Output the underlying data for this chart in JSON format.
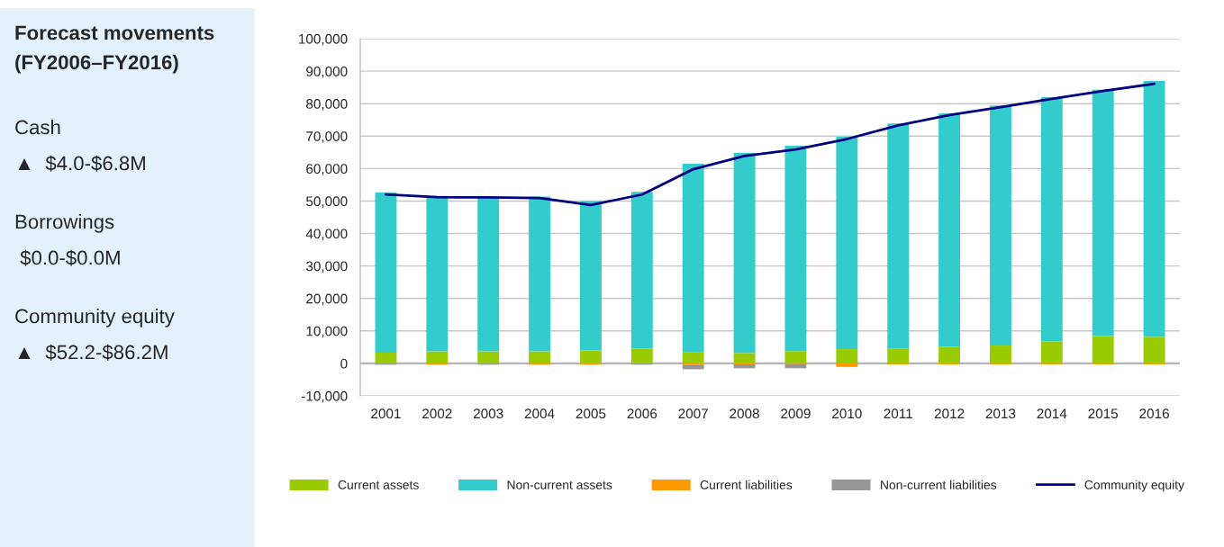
{
  "chart_data": {
    "type": "bar",
    "stacked": true,
    "title": "Forecast movements\n(FY2006–FY2016)",
    "annotations": [
      "Cash",
      "▲  $4.0-$6.8M",
      "Borrowings",
      " $0.0-$0.0M",
      "Community equity",
      "▲  $52.2-$86.2M"
    ],
    "categories": [
      "2001",
      "2002",
      "2003",
      "2004",
      "2005",
      "2006",
      "2007",
      "2008",
      "2009",
      "2010",
      "2011",
      "2012",
      "2013",
      "2014",
      "2015",
      "2016"
    ],
    "series": [
      {
        "name": "Current assets",
        "color": "#99cc00",
        "values": [
          3300,
          3700,
          3700,
          3700,
          4000,
          4600,
          3400,
          3200,
          3800,
          4400,
          4500,
          5100,
          5500,
          6800,
          8400,
          8200
        ]
      },
      {
        "name": "Non-current assets",
        "color": "#33cccc",
        "values": [
          49300,
          47900,
          47500,
          47700,
          46000,
          48200,
          58100,
          61600,
          63200,
          65400,
          69400,
          71900,
          73900,
          75200,
          75900,
          78800
        ]
      },
      {
        "name": "Current liabilities",
        "color": "#ff9900",
        "values": [
          0,
          -400,
          0,
          -400,
          -400,
          0,
          -500,
          -300,
          -200,
          -1100,
          -300,
          -300,
          -300,
          -300,
          -300,
          -300
        ]
      },
      {
        "name": "Non-current liabilities",
        "color": "#969696",
        "values": [
          -400,
          0,
          -400,
          0,
          0,
          -400,
          -1300,
          -1200,
          -1300,
          0,
          0,
          0,
          0,
          0,
          0,
          0
        ]
      },
      {
        "name": "Community equity",
        "type": "line",
        "color": "#000080",
        "values": [
          52000,
          51200,
          51100,
          50900,
          48800,
          52000,
          59800,
          63900,
          65900,
          69100,
          73300,
          76500,
          78900,
          81500,
          83900,
          86100
        ]
      }
    ],
    "ylim": [
      -10000,
      100000
    ],
    "yticks": [
      {
        "value": -10000,
        "label": "-10,000"
      },
      0,
      {
        "value": 10000,
        "label": "10,000"
      },
      {
        "value": 20000,
        "label": "20,000"
      },
      {
        "value": 30000,
        "label": "30,000"
      },
      {
        "value": 40000,
        "label": "40,000"
      },
      {
        "value": 50000,
        "label": "50,000"
      },
      {
        "value": 60000,
        "label": "60,000"
      },
      {
        "value": 70000,
        "label": "70,000"
      },
      {
        "value": 80000,
        "label": "80,000"
      },
      {
        "value": 90000,
        "label": "90,000"
      },
      {
        "value": 100000,
        "label": "100,000"
      }
    ],
    "grid": "y",
    "legend": "bottom"
  }
}
